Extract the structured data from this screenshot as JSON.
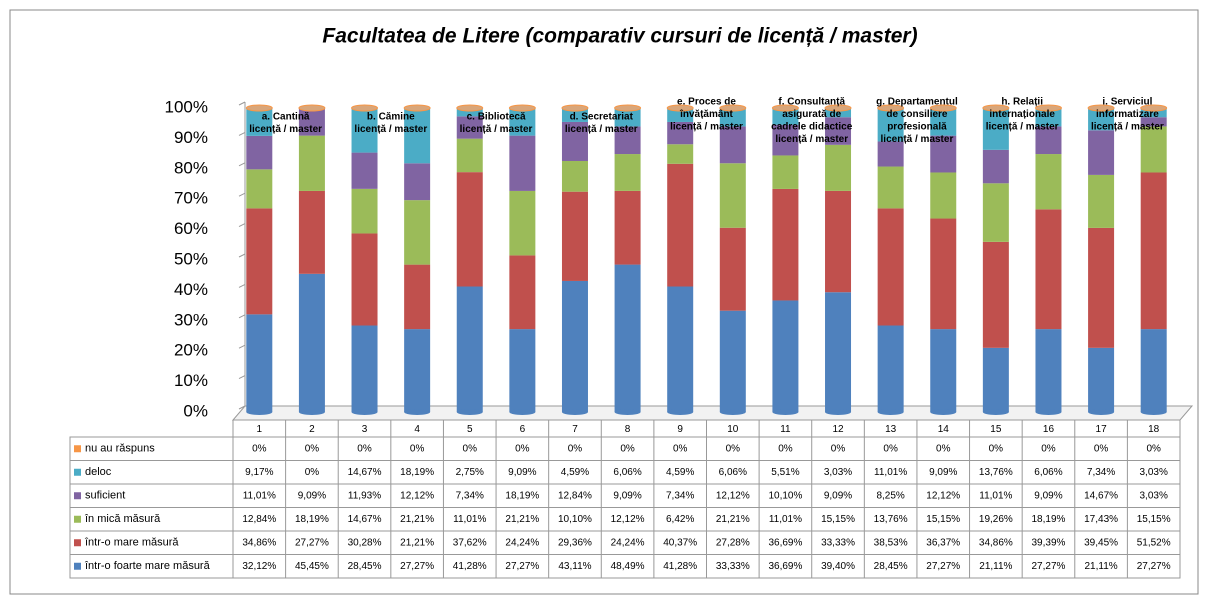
{
  "chart_data": {
    "type": "stacked_bar",
    "title": "Facultatea de Litere (comparativ cursuri de licență / master)",
    "categories": [
      "1",
      "2",
      "3",
      "4",
      "5",
      "6",
      "7",
      "8",
      "9",
      "10",
      "11",
      "12",
      "13",
      "14",
      "15",
      "16",
      "17",
      "18"
    ],
    "groups": [
      [
        "a. Cantină",
        "licență / master"
      ],
      [
        "b. Cămine",
        "licență / master"
      ],
      [
        "c. Bibliotecă",
        "licență / master"
      ],
      [
        "d. Secretariat",
        "licență / master"
      ],
      [
        "e. Proces de",
        "învățământ",
        "licență / master"
      ],
      [
        "f. Consultanță",
        "asigurată de",
        "cadrele didactice",
        "licență / master"
      ],
      [
        "g. Departamentul",
        "de consiliere",
        "profesională",
        "licență / master"
      ],
      [
        "h. Relații",
        "internaționale",
        "licență / master"
      ],
      [
        "i. Serviciul",
        "informatizare",
        "licență / master"
      ]
    ],
    "ylim": [
      0,
      100
    ],
    "yticks": [
      {
        "value": 0,
        "label": "0%"
      },
      {
        "value": 10,
        "label": "10%"
      },
      {
        "value": 20,
        "label": "20%"
      },
      {
        "value": 30,
        "label": "30%"
      },
      {
        "value": 40,
        "label": "40%"
      },
      {
        "value": 50,
        "label": "50%"
      },
      {
        "value": 60,
        "label": "60%"
      },
      {
        "value": 70,
        "label": "70%"
      },
      {
        "value": 80,
        "label": "80%"
      },
      {
        "value": 90,
        "label": "90%"
      },
      {
        "value": 100,
        "label": "100%"
      }
    ],
    "series": [
      {
        "name": "nu au răspuns",
        "color": "#f79646",
        "values": [
          0,
          0,
          0,
          0,
          0,
          0,
          0,
          0,
          0,
          0,
          0,
          0,
          0,
          0,
          0,
          0,
          0,
          0
        ],
        "value_labels": [
          "0%",
          "0%",
          "0%",
          "0%",
          "0%",
          "0%",
          "0%",
          "0%",
          "0%",
          "0%",
          "0%",
          "0%",
          "0%",
          "0%",
          "0%",
          "0%",
          "0%",
          "0%"
        ]
      },
      {
        "name": "deloc",
        "color": "#4bacc6",
        "values": [
          9.17,
          0,
          14.67,
          18.19,
          2.75,
          9.09,
          4.59,
          6.06,
          4.59,
          6.06,
          5.51,
          3.03,
          11.01,
          9.09,
          13.76,
          6.06,
          7.34,
          3.03
        ],
        "value_labels": [
          "9,17%",
          "0%",
          "14,67%",
          "18,19%",
          "2,75%",
          "9,09%",
          "4,59%",
          "6,06%",
          "4,59%",
          "6,06%",
          "5,51%",
          "3,03%",
          "11,01%",
          "9,09%",
          "13,76%",
          "6,06%",
          "7,34%",
          "3,03%"
        ]
      },
      {
        "name": "suficient",
        "color": "#8064a2",
        "values": [
          11.01,
          9.09,
          11.93,
          12.12,
          7.34,
          18.19,
          12.84,
          9.09,
          7.34,
          12.12,
          10.1,
          9.09,
          8.25,
          12.12,
          11.01,
          9.09,
          14.67,
          3.03
        ],
        "value_labels": [
          "11,01%",
          "9,09%",
          "11,93%",
          "12,12%",
          "7,34%",
          "18,19%",
          "12,84%",
          "9,09%",
          "7,34%",
          "12,12%",
          "10,10%",
          "9,09%",
          "8,25%",
          "12,12%",
          "11,01%",
          "9,09%",
          "14,67%",
          "3,03%"
        ]
      },
      {
        "name": "în mică măsură",
        "color": "#9bbb59",
        "values": [
          12.84,
          18.19,
          14.67,
          21.21,
          11.01,
          21.21,
          10.1,
          12.12,
          6.42,
          21.21,
          11.01,
          15.15,
          13.76,
          15.15,
          19.26,
          18.19,
          17.43,
          15.15
        ],
        "value_labels": [
          "12,84%",
          "18,19%",
          "14,67%",
          "21,21%",
          "11,01%",
          "21,21%",
          "10,10%",
          "12,12%",
          "6,42%",
          "21,21%",
          "11,01%",
          "15,15%",
          "13,76%",
          "15,15%",
          "19,26%",
          "18,19%",
          "17,43%",
          "15,15%"
        ]
      },
      {
        "name": "într-o mare măsură",
        "color": "#c0504d",
        "values": [
          34.86,
          27.27,
          30.28,
          21.21,
          37.62,
          24.24,
          29.36,
          24.24,
          40.37,
          27.28,
          36.69,
          33.33,
          38.53,
          36.37,
          34.86,
          39.39,
          39.45,
          51.52
        ],
        "value_labels": [
          "34,86%",
          "27,27%",
          "30,28%",
          "21,21%",
          "37,62%",
          "24,24%",
          "29,36%",
          "24,24%",
          "40,37%",
          "27,28%",
          "36,69%",
          "33,33%",
          "38,53%",
          "36,37%",
          "34,86%",
          "39,39%",
          "39,45%",
          "51,52%"
        ]
      },
      {
        "name": "într-o foarte mare măsură",
        "color": "#4f81bd",
        "values": [
          32.12,
          45.45,
          28.45,
          27.27,
          41.28,
          27.27,
          43.11,
          48.49,
          41.28,
          33.33,
          36.69,
          39.4,
          28.45,
          27.27,
          21.11,
          27.27,
          21.11,
          27.27
        ],
        "value_labels": [
          "32,12%",
          "45,45%",
          "28,45%",
          "27,27%",
          "41,28%",
          "27,27%",
          "43,11%",
          "48,49%",
          "41,28%",
          "33,33%",
          "36,69%",
          "39,40%",
          "28,45%",
          "27,27%",
          "21,11%",
          "27,27%",
          "21,11%",
          "27,27%"
        ]
      }
    ]
  }
}
